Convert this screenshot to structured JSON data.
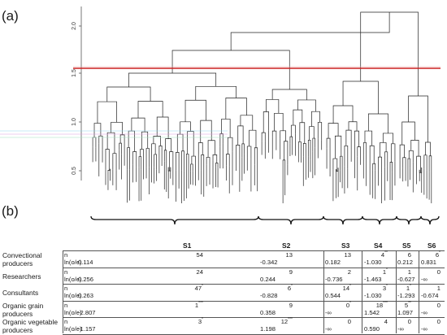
{
  "panel_a_label": "(a)",
  "panel_b_label": "(b)",
  "dendrogram": {
    "y_ticks": [
      "0.5",
      "1.0",
      "1.5",
      "2.0"
    ],
    "cut_line_color": "#cc2222"
  },
  "table": {
    "columns": [
      "S1",
      "S2",
      "S3",
      "S4",
      "S5",
      "S6"
    ],
    "rows": [
      {
        "label_lines": [
          "Convectional",
          "producers"
        ],
        "n": [
          "54",
          "13",
          "13",
          "4",
          "6",
          "6"
        ],
        "n_sig": [
          "",
          "",
          "",
          "**",
          "",
          "*"
        ],
        "ln": [
          "0.114",
          "-0.342",
          "0.182",
          "-1.030",
          "0.212",
          "0.831"
        ]
      },
      {
        "label_lines": [
          "Researchers"
        ],
        "n": [
          "24",
          "9",
          "2",
          "1",
          "1",
          "0"
        ],
        "n_sig": [
          "",
          "",
          "",
          "*",
          "",
          ""
        ],
        "ln": [
          "0.256",
          "0.244",
          "-0.736",
          "-1.463",
          "-0.627",
          "-∞"
        ]
      },
      {
        "label_lines": [
          "Consultants"
        ],
        "n": [
          "47",
          "6",
          "14",
          "3",
          "1",
          "1"
        ],
        "n_sig": [
          "*",
          "*",
          "*",
          "*",
          "*",
          ""
        ],
        "ln": [
          "0.263",
          "-0.828",
          "0.544",
          "-1.030",
          "-1.293",
          "-0.674"
        ]
      },
      {
        "label_lines": [
          "Organic grain",
          "producers"
        ],
        "n": [
          "1",
          "9",
          "0",
          "18",
          "5",
          "0"
        ],
        "n_sig": [
          "***",
          "",
          "*",
          "***",
          "**",
          ""
        ],
        "ln": [
          "-2.807",
          "0.358",
          "-∞",
          "1.542",
          "1.097",
          "-∞"
        ]
      },
      {
        "label_lines": [
          "Organic vegetable",
          "producers"
        ],
        "n": [
          "3",
          "12",
          "0",
          "4",
          "0",
          "0"
        ],
        "n_sig": [
          "*",
          "***",
          "",
          "",
          "",
          ""
        ],
        "ln": [
          "-1.157",
          "1.198",
          "-∞",
          "0.590",
          "-∞",
          "-∞"
        ]
      }
    ],
    "row_type_n": "n",
    "row_type_ln": "ln(o/e)"
  }
}
